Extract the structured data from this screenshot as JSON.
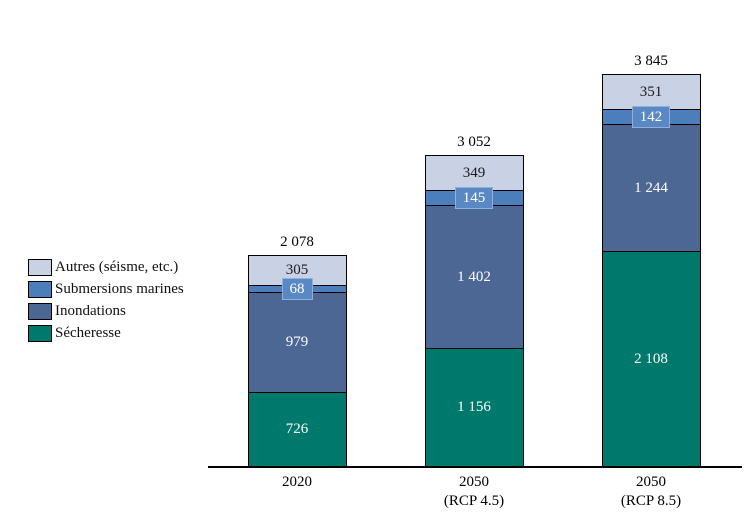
{
  "chart_data": {
    "type": "bar",
    "stacked": true,
    "title": "",
    "xlabel": "",
    "ylabel": "",
    "gridlines": false,
    "legend_position": "left",
    "categories": [
      [
        "2020"
      ],
      [
        "2050",
        "(RCP 4.5)"
      ],
      [
        "2050",
        "(RCP 8.5)"
      ]
    ],
    "series": [
      {
        "id": "secheresse",
        "name": "Sécheresse",
        "color": "#00796d",
        "label_color": "#ffffff",
        "boxed_labels": false,
        "box_color": "",
        "values": [
          726,
          1156,
          2108
        ],
        "labels": [
          "726",
          "1 156",
          "2 108"
        ]
      },
      {
        "id": "inondations",
        "name": "Inondations",
        "color": "#4d6795",
        "label_color": "#ffffff",
        "boxed_labels": false,
        "box_color": "",
        "values": [
          979,
          1402,
          1244
        ],
        "labels": [
          "979",
          "1 402",
          "1 244"
        ]
      },
      {
        "id": "submersions",
        "name": "Submersions marines",
        "color": "#4c7ebc",
        "label_color": "#ffffff",
        "boxed_labels": true,
        "box_color": "#5a88c4",
        "values": [
          68,
          145,
          142
        ],
        "labels": [
          "68",
          "145",
          "142"
        ]
      },
      {
        "id": "autres",
        "name": "Autres (séisme, etc.)",
        "color": "#c8d2e4",
        "label_color": "#1a1a1a",
        "boxed_labels": false,
        "box_color": "",
        "values": [
          305,
          349,
          351
        ],
        "labels": [
          "305",
          "349",
          "351"
        ]
      }
    ],
    "totals": {
      "values": [
        2078,
        3052,
        3845
      ],
      "labels": [
        "2 078",
        "3 052",
        "3 845"
      ]
    }
  },
  "legend": {
    "items": [
      {
        "series": "autres",
        "label": "Autres (séisme, etc.)"
      },
      {
        "series": "submersions",
        "label": "Submersions marines"
      },
      {
        "series": "inondations",
        "label": "Inondations"
      },
      {
        "series": "secheresse",
        "label": "Sécheresse"
      }
    ]
  }
}
